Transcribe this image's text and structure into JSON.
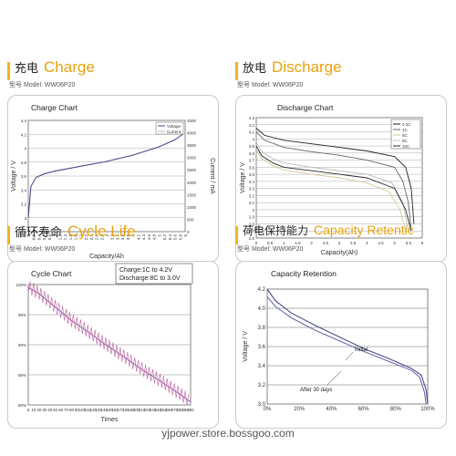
{
  "panels": {
    "charge": {
      "title_zh": "充电",
      "title_en": "Charge",
      "model": "型号 Model: WW06P20"
    },
    "discharge": {
      "title_zh": "放电",
      "title_en": "Discharge",
      "model": "型号 Model: WW06P20"
    },
    "cycle": {
      "title_zh": "循环寿命",
      "title_en": "Cycle Life",
      "model": "型号 Model: WW06P20"
    },
    "retention": {
      "title_zh": "荷电保持能力",
      "title_en": "Capacity Retentic",
      "model": "型号 Model: WW06P20"
    }
  },
  "watermark": "yjpower.store.bossgoo.com",
  "colors": {
    "accent": "#e8a10c",
    "bar": "#f5b21c",
    "voltage": "#4a4a8a",
    "current": "#b8b0d8",
    "grid": "#999999"
  },
  "chart_data": [
    {
      "type": "line",
      "title": "Charge Chart",
      "xlabel": "Capacity/Ah",
      "ylabel": "Voltage / V",
      "y2label": "Current / mA",
      "xlim": [
        0,
        6
      ],
      "xticks": [
        "0",
        "0.2",
        "0.4",
        "0.6",
        "0.8",
        "1",
        "1.2",
        "1.4",
        "1.6",
        "1.8",
        "2",
        "2.2",
        "2.4",
        "2.6",
        "2.8",
        "3",
        "3.2",
        "3.4",
        "3.6",
        "3.8",
        "4",
        "4.2",
        "4.4",
        "4.6",
        "4.8",
        "5",
        "5.2",
        "5.4",
        "5.6",
        "5.8",
        "6"
      ],
      "ylim": [
        2.8,
        4.4
      ],
      "yticks": [
        "2.8",
        "3",
        "3.2",
        "3.4",
        "3.6",
        "3.8",
        "4",
        "4.2",
        "4.4"
      ],
      "y2lim": [
        0,
        4500
      ],
      "y2ticks": [
        "0",
        "500",
        "1000",
        "1500",
        "2000",
        "2500",
        "3000",
        "3500",
        "4000",
        "4500"
      ],
      "legend": [
        "Voltage",
        "Current"
      ],
      "legend_position": "top-right",
      "series": [
        {
          "name": "Voltage",
          "x": [
            0,
            0.1,
            0.3,
            0.6,
            1,
            2,
            3,
            4,
            5,
            5.6,
            5.9
          ],
          "y": [
            3.0,
            3.45,
            3.58,
            3.63,
            3.67,
            3.74,
            3.81,
            3.9,
            4.02,
            4.12,
            4.2
          ]
        },
        {
          "name": "Current",
          "x": [
            0,
            5.9
          ],
          "y": [
            0,
            0
          ]
        }
      ]
    },
    {
      "type": "line",
      "title": "Discharge Chart",
      "xlabel": "Capacity(Ah)",
      "ylabel": "Voltage / V",
      "xlim": [
        0,
        6
      ],
      "xticks": [
        "0",
        "0.5",
        "1",
        "1.5",
        "2",
        "2.5",
        "3",
        "3.5",
        "4",
        "4.5",
        "5",
        "5.5",
        "6"
      ],
      "ylim": [
        2.6,
        4.3
      ],
      "yticks": [
        "2.6",
        "2.7",
        "2.8",
        "2.9",
        "3",
        "3.1",
        "3.2",
        "3.3",
        "3.4",
        "3.5",
        "3.6",
        "3.7",
        "3.8",
        "3.9",
        "4",
        "4.1",
        "4.2",
        "4.3"
      ],
      "legend": [
        "0.2C",
        "1C",
        "5C",
        "8C",
        "10C"
      ],
      "legend_position": "top-right",
      "series": [
        {
          "name": "0.2C",
          "x": [
            0,
            0.3,
            1,
            2,
            3,
            4,
            5,
            5.4,
            5.6,
            5.7
          ],
          "y": [
            4.15,
            4.05,
            3.98,
            3.93,
            3.88,
            3.83,
            3.75,
            3.6,
            3.3,
            2.8
          ]
        },
        {
          "name": "1C",
          "x": [
            0,
            0.3,
            1,
            2,
            3,
            4,
            5,
            5.3,
            5.5,
            5.6
          ],
          "y": [
            4.1,
            3.98,
            3.88,
            3.82,
            3.77,
            3.7,
            3.6,
            3.4,
            3.1,
            2.7
          ]
        },
        {
          "name": "5C",
          "x": [
            0,
            0.2,
            0.6,
            1,
            2,
            3,
            4,
            4.8,
            5.2,
            5.4
          ],
          "y": [
            3.85,
            3.72,
            3.62,
            3.56,
            3.5,
            3.45,
            3.38,
            3.25,
            3.0,
            2.7
          ]
        },
        {
          "name": "8C",
          "x": [
            0,
            0.2,
            0.6,
            1,
            2,
            3,
            4,
            4.9,
            5.3,
            5.5
          ],
          "y": [
            3.95,
            3.82,
            3.72,
            3.66,
            3.6,
            3.55,
            3.5,
            3.38,
            3.1,
            2.7
          ]
        },
        {
          "name": "10C",
          "x": [
            0,
            0.2,
            0.6,
            1,
            2,
            3,
            4,
            5,
            5.4,
            5.6
          ],
          "y": [
            3.9,
            3.76,
            3.66,
            3.6,
            3.55,
            3.5,
            3.45,
            3.3,
            3.0,
            2.7
          ]
        }
      ]
    },
    {
      "type": "line",
      "title": "Cycle Chart",
      "xlabel": "Times",
      "ylabel": "",
      "xlim": [
        0,
        300
      ],
      "xticks": [
        "0",
        "10",
        "20",
        "30",
        "40",
        "50",
        "60",
        "70",
        "80",
        "90",
        "100",
        "110",
        "120",
        "130",
        "140",
        "150",
        "160",
        "170",
        "180",
        "190",
        "200",
        "210",
        "220",
        "230",
        "240",
        "250",
        "260",
        "270",
        "280",
        "290",
        "300"
      ],
      "ylim": [
        80,
        100
      ],
      "yticks": [
        "80%",
        "85%",
        "90%",
        "95%",
        "100%"
      ],
      "annotations": [
        "Charge:1C to 4.2V",
        "Discharge:8C  to  3.0V"
      ],
      "series": [
        {
          "name": "",
          "x": [
            0,
            20,
            40,
            60,
            80,
            100,
            120,
            140,
            160,
            180,
            200,
            220,
            240,
            260,
            280,
            300
          ],
          "y": [
            99.5,
            98.5,
            97.0,
            95.5,
            94.0,
            92.8,
            91.5,
            90.2,
            89.0,
            87.8,
            86.5,
            85.3,
            84.2,
            83.0,
            81.8,
            80.5
          ]
        }
      ]
    },
    {
      "type": "line",
      "title": "Capacity Retention",
      "xlabel": "",
      "ylabel": "Voltage / V",
      "xlim": [
        0,
        100
      ],
      "xticks": [
        "0%",
        "20%",
        "40%",
        "60%",
        "80%",
        "100%"
      ],
      "ylim": [
        3.0,
        4.2
      ],
      "yticks": [
        "3.0",
        "3.2",
        "3.4",
        "3.6",
        "3.8",
        "4.0",
        "4.2"
      ],
      "annotations": [
        "Initial",
        "After 30 days"
      ],
      "series": [
        {
          "name": "Initial",
          "x": [
            0,
            5,
            15,
            30,
            45,
            60,
            75,
            90,
            96,
            99,
            100
          ],
          "y": [
            4.2,
            4.08,
            3.95,
            3.82,
            3.7,
            3.58,
            3.48,
            3.37,
            3.3,
            3.15,
            3.0
          ]
        },
        {
          "name": "After 30 days",
          "x": [
            0,
            5,
            15,
            30,
            45,
            60,
            75,
            90,
            95,
            98,
            99
          ],
          "y": [
            4.12,
            4.02,
            3.9,
            3.77,
            3.66,
            3.55,
            3.45,
            3.35,
            3.28,
            3.12,
            3.0
          ]
        }
      ]
    }
  ]
}
